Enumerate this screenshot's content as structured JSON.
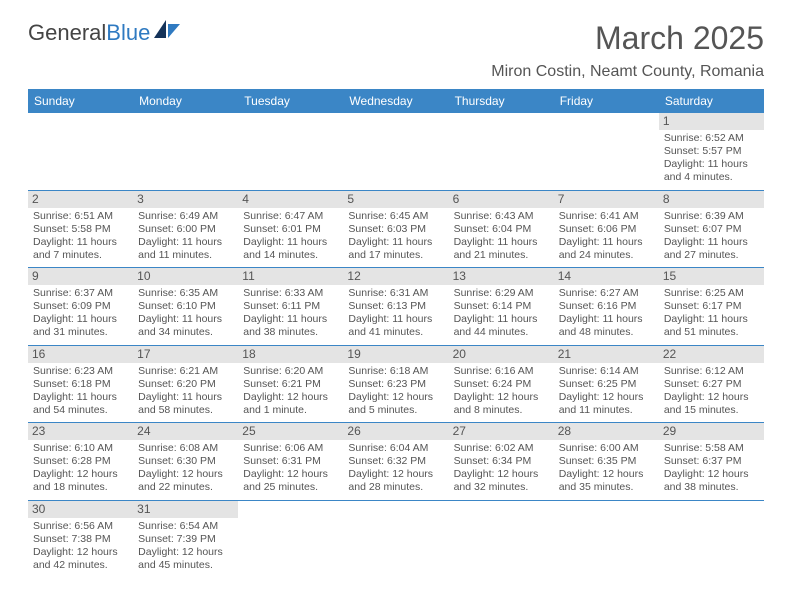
{
  "logo": {
    "text1": "General",
    "text2": "Blue"
  },
  "title": {
    "month": "March 2025",
    "location": "Miron Costin, Neamt County, Romania"
  },
  "weekdays": [
    "Sunday",
    "Monday",
    "Tuesday",
    "Wednesday",
    "Thursday",
    "Friday",
    "Saturday"
  ],
  "colors": {
    "header_bg": "#3b86c6",
    "header_fg": "#ffffff",
    "daybar_bg": "#e4e4e4",
    "text": "#555555",
    "rule": "#3b86c6"
  },
  "layout": {
    "leading_blanks": 6,
    "days_in_month": 31
  },
  "days": {
    "1": {
      "sunrise": "6:52 AM",
      "sunset": "5:57 PM",
      "daylight": "11 hours and 4 minutes."
    },
    "2": {
      "sunrise": "6:51 AM",
      "sunset": "5:58 PM",
      "daylight": "11 hours and 7 minutes."
    },
    "3": {
      "sunrise": "6:49 AM",
      "sunset": "6:00 PM",
      "daylight": "11 hours and 11 minutes."
    },
    "4": {
      "sunrise": "6:47 AM",
      "sunset": "6:01 PM",
      "daylight": "11 hours and 14 minutes."
    },
    "5": {
      "sunrise": "6:45 AM",
      "sunset": "6:03 PM",
      "daylight": "11 hours and 17 minutes."
    },
    "6": {
      "sunrise": "6:43 AM",
      "sunset": "6:04 PM",
      "daylight": "11 hours and 21 minutes."
    },
    "7": {
      "sunrise": "6:41 AM",
      "sunset": "6:06 PM",
      "daylight": "11 hours and 24 minutes."
    },
    "8": {
      "sunrise": "6:39 AM",
      "sunset": "6:07 PM",
      "daylight": "11 hours and 27 minutes."
    },
    "9": {
      "sunrise": "6:37 AM",
      "sunset": "6:09 PM",
      "daylight": "11 hours and 31 minutes."
    },
    "10": {
      "sunrise": "6:35 AM",
      "sunset": "6:10 PM",
      "daylight": "11 hours and 34 minutes."
    },
    "11": {
      "sunrise": "6:33 AM",
      "sunset": "6:11 PM",
      "daylight": "11 hours and 38 minutes."
    },
    "12": {
      "sunrise": "6:31 AM",
      "sunset": "6:13 PM",
      "daylight": "11 hours and 41 minutes."
    },
    "13": {
      "sunrise": "6:29 AM",
      "sunset": "6:14 PM",
      "daylight": "11 hours and 44 minutes."
    },
    "14": {
      "sunrise": "6:27 AM",
      "sunset": "6:16 PM",
      "daylight": "11 hours and 48 minutes."
    },
    "15": {
      "sunrise": "6:25 AM",
      "sunset": "6:17 PM",
      "daylight": "11 hours and 51 minutes."
    },
    "16": {
      "sunrise": "6:23 AM",
      "sunset": "6:18 PM",
      "daylight": "11 hours and 54 minutes."
    },
    "17": {
      "sunrise": "6:21 AM",
      "sunset": "6:20 PM",
      "daylight": "11 hours and 58 minutes."
    },
    "18": {
      "sunrise": "6:20 AM",
      "sunset": "6:21 PM",
      "daylight": "12 hours and 1 minute."
    },
    "19": {
      "sunrise": "6:18 AM",
      "sunset": "6:23 PM",
      "daylight": "12 hours and 5 minutes."
    },
    "20": {
      "sunrise": "6:16 AM",
      "sunset": "6:24 PM",
      "daylight": "12 hours and 8 minutes."
    },
    "21": {
      "sunrise": "6:14 AM",
      "sunset": "6:25 PM",
      "daylight": "12 hours and 11 minutes."
    },
    "22": {
      "sunrise": "6:12 AM",
      "sunset": "6:27 PM",
      "daylight": "12 hours and 15 minutes."
    },
    "23": {
      "sunrise": "6:10 AM",
      "sunset": "6:28 PM",
      "daylight": "12 hours and 18 minutes."
    },
    "24": {
      "sunrise": "6:08 AM",
      "sunset": "6:30 PM",
      "daylight": "12 hours and 22 minutes."
    },
    "25": {
      "sunrise": "6:06 AM",
      "sunset": "6:31 PM",
      "daylight": "12 hours and 25 minutes."
    },
    "26": {
      "sunrise": "6:04 AM",
      "sunset": "6:32 PM",
      "daylight": "12 hours and 28 minutes."
    },
    "27": {
      "sunrise": "6:02 AM",
      "sunset": "6:34 PM",
      "daylight": "12 hours and 32 minutes."
    },
    "28": {
      "sunrise": "6:00 AM",
      "sunset": "6:35 PM",
      "daylight": "12 hours and 35 minutes."
    },
    "29": {
      "sunrise": "5:58 AM",
      "sunset": "6:37 PM",
      "daylight": "12 hours and 38 minutes."
    },
    "30": {
      "sunrise": "6:56 AM",
      "sunset": "7:38 PM",
      "daylight": "12 hours and 42 minutes."
    },
    "31": {
      "sunrise": "6:54 AM",
      "sunset": "7:39 PM",
      "daylight": "12 hours and 45 minutes."
    }
  },
  "labels": {
    "sunrise": "Sunrise: ",
    "sunset": "Sunset: ",
    "daylight": "Daylight: "
  }
}
